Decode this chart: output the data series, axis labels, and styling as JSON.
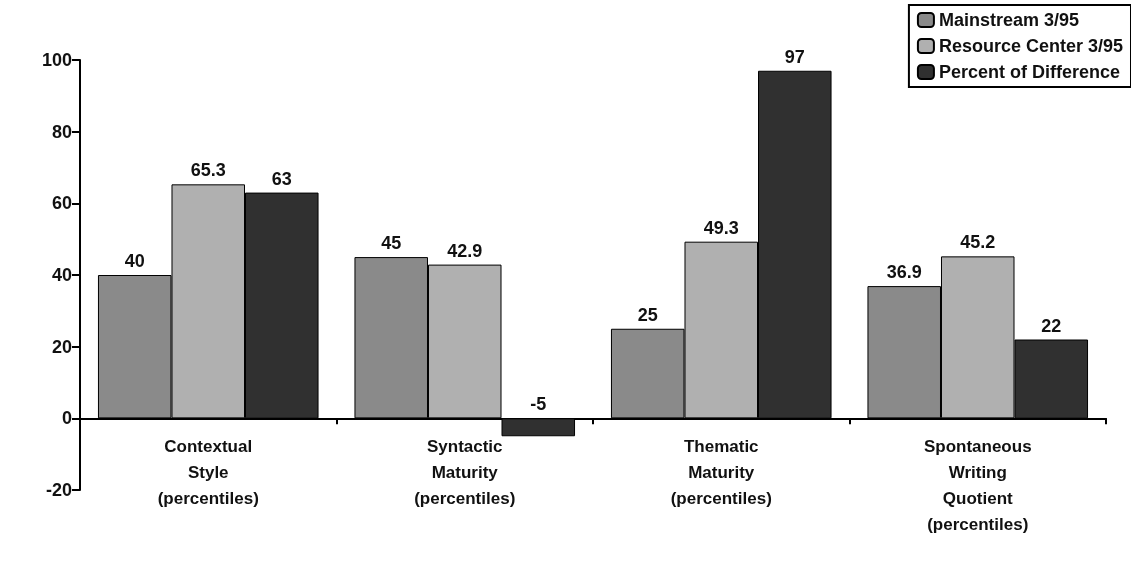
{
  "chart_data": {
    "type": "bar",
    "categories": [
      "Contextual\nStyle\n(percentiles)",
      "Syntactic\nMaturity\n(percentiles)",
      "Thematic\nMaturity\n(percentiles)",
      "Spontaneous\nWriting\nQuotient\n(percentiles)"
    ],
    "series": [
      {
        "name": "Mainstream 3/95",
        "color": "#8a8a8a",
        "values": [
          40,
          45,
          25,
          36.9
        ]
      },
      {
        "name": "Resource Center 3/95",
        "color": "#b0b0b0",
        "values": [
          65.3,
          42.9,
          49.3,
          45.2
        ]
      },
      {
        "name": "Percent of Difference",
        "color": "#303030",
        "values": [
          63,
          -5,
          97,
          22
        ]
      }
    ],
    "ylim": [
      -20,
      100
    ],
    "yticks": [
      -20,
      0,
      20,
      40,
      60,
      80,
      100
    ],
    "data_labels": true,
    "grid": false,
    "legend": "top right"
  }
}
